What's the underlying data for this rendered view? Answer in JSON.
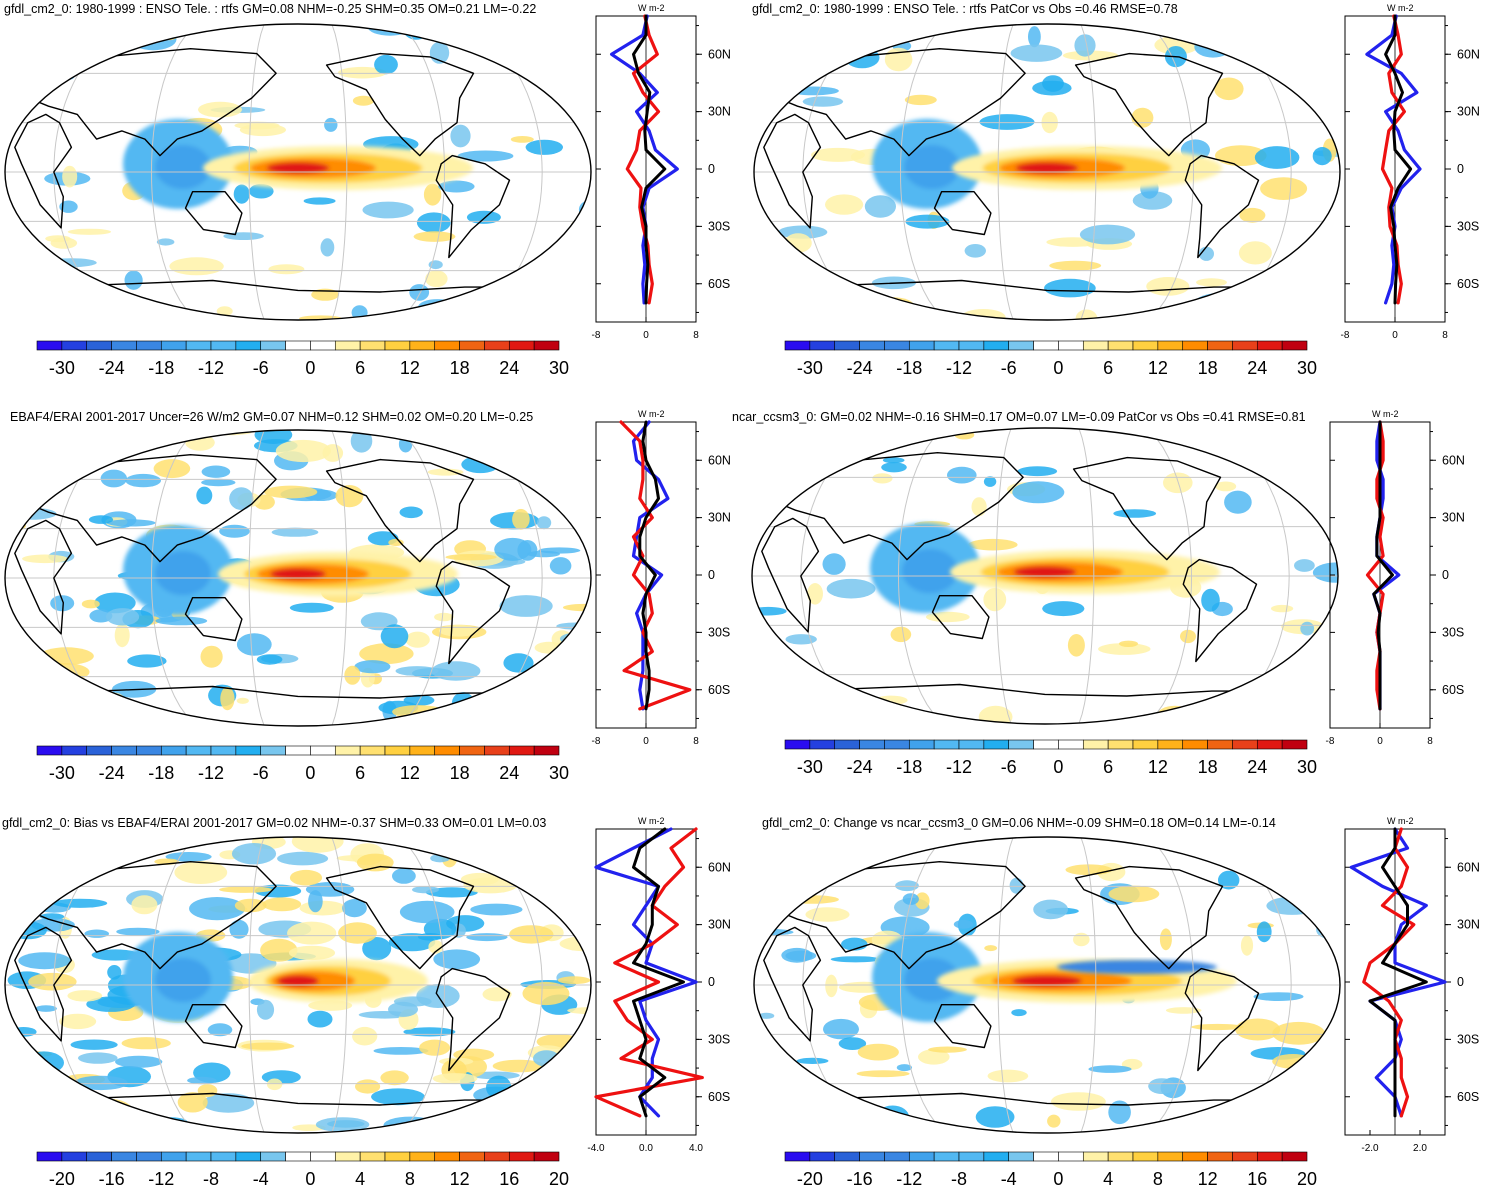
{
  "colors": {
    "cold": "#2222ee",
    "warm": "#ee1111",
    "black": "#000000",
    "ramp_blue": [
      "#2a0cf0",
      "#2440e0",
      "#2a62d8",
      "#3a86e2",
      "#40a2ec",
      "#52b8f2",
      "#22aef0",
      "#78c6ee"
    ],
    "ramp_red": [
      "#fff2a8",
      "#ffe070",
      "#ffd040",
      "#ffb21a",
      "#ff8c00",
      "#f06412",
      "#e8401a",
      "#e01812",
      "#c00010"
    ]
  },
  "panels": [
    {
      "id": "p1",
      "title": "gfdl_cm2_0: 1980-1999 : ENSO Tele. : rtfs GM=0.08 NHM=-0.25 SHM=0.35 OM=0.21 LM=-0.22",
      "colorbar_labels": [
        "-30",
        "-24",
        "-18",
        "-12",
        "-6",
        "0",
        "6",
        "12",
        "18",
        "24",
        "30"
      ],
      "profile_unit": "W m-2",
      "profile_xticks": [
        "-8",
        "0",
        "8"
      ],
      "lat_ticks": [
        "60N",
        "30N",
        "0",
        "30S",
        "60S"
      ],
      "map": {
        "band": 0.9,
        "features": [
          "warm-equatorial-pacific",
          "cool-maritime"
        ],
        "noise": 0.2
      },
      "chart_data": {
        "type": "line",
        "xlabel": "W m-2",
        "xlim": [
          -8,
          8
        ],
        "lat": [
          80,
          70,
          60,
          50,
          40,
          30,
          20,
          10,
          0,
          -10,
          -20,
          -30,
          -40,
          -50,
          -60,
          -70
        ],
        "series": [
          {
            "name": "blue",
            "values": [
              0.2,
              -0.5,
              -5.5,
              -1.0,
              1.8,
              -1.5,
              0.5,
              1.5,
              5.0,
              0.5,
              -0.5,
              0.0,
              -0.5,
              -0.2,
              -0.5,
              -0.3
            ]
          },
          {
            "name": "red",
            "values": [
              -0.2,
              0.5,
              1.8,
              -2.0,
              -0.5,
              2.0,
              -1.0,
              -1.5,
              -3.0,
              -0.8,
              -1.0,
              -0.5,
              0.3,
              0.5,
              1.0,
              0.5
            ]
          },
          {
            "name": "black",
            "values": [
              0.0,
              0.0,
              -2.0,
              -1.2,
              0.6,
              0.2,
              -0.2,
              0.0,
              3.0,
              0.0,
              -0.7,
              0.0,
              0.0,
              0.3,
              0.1,
              0.0
            ]
          }
        ]
      }
    },
    {
      "id": "p2",
      "title": "gfdl_cm2_0: 1980-1999 : ENSO Tele. : rtfs PatCor vs Obs =0.46 RMSE=0.78",
      "colorbar_labels": [
        "-30",
        "-24",
        "-18",
        "-12",
        "-6",
        "0",
        "6",
        "12",
        "18",
        "24",
        "30"
      ],
      "profile_unit": "W m-2",
      "profile_xticks": [
        "-8",
        "0",
        "8"
      ],
      "lat_ticks": [
        "60N",
        "30N",
        "0",
        "30S",
        "60S"
      ],
      "map": {
        "band": 0.9,
        "features": [
          "warm-equatorial-pacific",
          "cool-maritime"
        ],
        "noise": 0.2
      },
      "chart_data": {
        "type": "line",
        "xlabel": "W m-2",
        "xlim": [
          -8,
          8
        ],
        "lat": [
          80,
          70,
          60,
          50,
          40,
          30,
          20,
          10,
          0,
          -10,
          -20,
          -30,
          -40,
          -50,
          -60,
          -70
        ],
        "series": [
          {
            "name": "blue",
            "values": [
              0.2,
              -0.5,
              -4.5,
              1.0,
              3.5,
              -1.5,
              0.5,
              1.5,
              4.0,
              1.0,
              -0.5,
              0.0,
              -0.5,
              -0.2,
              -0.5,
              -1.5
            ]
          },
          {
            "name": "red",
            "values": [
              -0.2,
              0.5,
              1.0,
              -1.0,
              -0.5,
              1.5,
              -1.0,
              -1.5,
              -2.0,
              -0.5,
              -1.0,
              -0.8,
              0.3,
              0.5,
              1.0,
              0.5
            ]
          },
          {
            "name": "black",
            "values": [
              0.0,
              0.0,
              -1.5,
              0.0,
              1.2,
              0.0,
              -0.2,
              0.0,
              2.5,
              0.5,
              -0.7,
              -0.2,
              0.0,
              0.3,
              0.1,
              0.0
            ]
          }
        ]
      }
    },
    {
      "id": "p3",
      "title": "EBAF4/ERAI 2001-2017 Uncer=26 W/m2 GM=0.07 NHM=0.12 SHM=0.02 OM=0.20 LM=-0.25",
      "colorbar_labels": [
        "-30",
        "-24",
        "-18",
        "-12",
        "-6",
        "0",
        "6",
        "12",
        "18",
        "24",
        "30"
      ],
      "profile_unit": "W m-2",
      "profile_xticks": [
        "-8",
        "0",
        "8"
      ],
      "lat_ticks": [
        "60N",
        "30N",
        "0",
        "30S",
        "60S"
      ],
      "map": {
        "band": 0.8,
        "features": [
          "warm-equatorial-pacific",
          "cool-maritime"
        ],
        "noise": 0.8
      },
      "chart_data": {
        "type": "line",
        "xlabel": "W m-2",
        "xlim": [
          -8,
          8
        ],
        "lat": [
          80,
          70,
          60,
          50,
          40,
          30,
          20,
          10,
          0,
          -10,
          -20,
          -30,
          -40,
          -50,
          -60,
          -70
        ],
        "series": [
          {
            "name": "blue",
            "values": [
              0.5,
              -2.0,
              -1.5,
              2.0,
              3.5,
              -1.0,
              -1.5,
              -2.0,
              2.5,
              0.0,
              -1.5,
              -0.5,
              -0.5,
              -0.5,
              -1.0,
              -0.5
            ]
          },
          {
            "name": "red",
            "values": [
              -4.0,
              -1.0,
              -0.5,
              -0.5,
              -1.0,
              1.0,
              -2.0,
              -0.5,
              -2.0,
              0.5,
              1.0,
              -0.5,
              1.0,
              -3.5,
              7.0,
              -1.0
            ]
          },
          {
            "name": "black",
            "values": [
              0.0,
              -0.5,
              0.0,
              1.5,
              2.0,
              0.0,
              -1.0,
              -1.0,
              1.5,
              0.0,
              -0.5,
              0.0,
              0.0,
              0.5,
              0.5,
              0.0
            ]
          }
        ]
      }
    },
    {
      "id": "p4",
      "title": "ncar_ccsm3_0: GM=0.02 NHM=-0.16 SHM=0.17 OM=0.07 LM=-0.09 PatCor vs Obs =0.41 RMSE=0.81",
      "colorbar_labels": [
        "-30",
        "-24",
        "-18",
        "-12",
        "-6",
        "0",
        "6",
        "12",
        "18",
        "24",
        "30"
      ],
      "profile_unit": "W m-2",
      "profile_xticks": [
        "-8",
        "0",
        "8"
      ],
      "lat_ticks": [
        "60N",
        "30N",
        "0",
        "30S",
        "60S"
      ],
      "map": {
        "band": 0.9,
        "features": [
          "warm-equatorial-pacific",
          "cool-maritime"
        ],
        "noise": 0.1
      },
      "chart_data": {
        "type": "line",
        "xlabel": "W m-2",
        "xlim": [
          -8,
          8
        ],
        "lat": [
          80,
          70,
          60,
          50,
          40,
          30,
          20,
          10,
          0,
          -10,
          -20,
          -30,
          -40,
          -50,
          -60,
          -70
        ],
        "series": [
          {
            "name": "blue",
            "values": [
              0.0,
              -0.5,
              -0.5,
              0.5,
              0.5,
              0.0,
              -0.5,
              -0.5,
              3.0,
              -1.0,
              0.0,
              -0.5,
              0.0,
              0.0,
              0.0,
              0.0
            ]
          },
          {
            "name": "red",
            "values": [
              0.0,
              0.5,
              0.5,
              -0.5,
              -0.5,
              0.5,
              0.0,
              0.5,
              -2.0,
              0.5,
              0.0,
              -0.5,
              0.0,
              -0.5,
              -0.5,
              0.0
            ]
          },
          {
            "name": "black",
            "values": [
              0.0,
              0.0,
              0.0,
              0.0,
              0.0,
              0.0,
              -0.5,
              -0.5,
              2.0,
              -1.0,
              0.0,
              -0.3,
              0.0,
              0.0,
              0.0,
              0.0
            ]
          }
        ]
      }
    },
    {
      "id": "p5",
      "title": "gfdl_cm2_0: Bias vs EBAF4/ERAI 2001-2017 GM=0.02 NHM=-0.37 SHM=0.33 OM=0.01 LM=0.03",
      "colorbar_labels": [
        "-20",
        "-16",
        "-12",
        "-8",
        "-4",
        "0",
        "4",
        "8",
        "12",
        "16",
        "20"
      ],
      "profile_unit": "W m-2",
      "profile_xticks": [
        "-4.0",
        "0.0",
        "4.0"
      ],
      "lat_ticks": [
        "60N",
        "30N",
        "0",
        "30S",
        "60S"
      ],
      "map": {
        "band": 0.6,
        "features": [
          "warm-equatorial-pacific",
          "cool-maritime"
        ],
        "noise": 1.0
      },
      "chart_data": {
        "type": "line",
        "xlabel": "W m-2",
        "xlim": [
          -4,
          4
        ],
        "lat": [
          80,
          70,
          60,
          50,
          40,
          30,
          20,
          10,
          0,
          -10,
          -20,
          -30,
          -40,
          -50,
          -60,
          -70
        ],
        "series": [
          {
            "name": "blue",
            "values": [
              2.0,
              -1.0,
              -4.0,
              1.0,
              0.0,
              -1.0,
              0.5,
              0.0,
              4.0,
              -0.5,
              0.0,
              1.0,
              0.5,
              0.5,
              -0.5,
              1.0
            ]
          },
          {
            "name": "red",
            "values": [
              4.0,
              2.0,
              3.0,
              1.5,
              0.5,
              2.5,
              0.5,
              -2.5,
              1.0,
              -2.5,
              -1.5,
              0.5,
              -2.0,
              4.5,
              -4.0,
              -0.5
            ]
          },
          {
            "name": "black",
            "values": [
              1.5,
              -0.5,
              -1.0,
              1.0,
              0.5,
              0.5,
              0.0,
              -1.0,
              3.0,
              -1.0,
              -0.5,
              0.0,
              -0.5,
              1.5,
              -0.5,
              0.0
            ]
          }
        ]
      }
    },
    {
      "id": "p6",
      "title": "gfdl_cm2_0: Change vs ncar_ccsm3_0 GM=0.06 NHM=-0.09 SHM=0.18 OM=0.14 LM=-0.14",
      "colorbar_labels": [
        "-20",
        "-16",
        "-12",
        "-8",
        "-4",
        "0",
        "4",
        "8",
        "12",
        "16",
        "20"
      ],
      "profile_unit": "W m-2",
      "profile_xticks": [
        "-2.0",
        "2.0"
      ],
      "lat_ticks": [
        "60N",
        "30N",
        "0",
        "30S",
        "60S"
      ],
      "map": {
        "band": 1.0,
        "features": [
          "warm-equatorial-pacific",
          "cool-maritime",
          "cool-east-pacific"
        ],
        "noise": 0.3
      },
      "chart_data": {
        "type": "line",
        "xlabel": "W m-2",
        "xlim": [
          -4,
          4
        ],
        "lat": [
          80,
          70,
          60,
          50,
          40,
          30,
          20,
          10,
          0,
          -10,
          -20,
          -30,
          -40,
          -50,
          -60,
          -70
        ],
        "series": [
          {
            "name": "blue",
            "values": [
              0.0,
              1.0,
              -3.5,
              -1.0,
              2.5,
              0.5,
              0.0,
              0.0,
              4.0,
              -2.0,
              0.0,
              0.5,
              0.0,
              -1.5,
              0.0,
              0.5
            ]
          },
          {
            "name": "red",
            "values": [
              0.5,
              0.0,
              1.0,
              0.5,
              -1.0,
              1.5,
              0.0,
              -2.0,
              -2.5,
              -0.5,
              0.5,
              0.0,
              0.5,
              0.5,
              1.0,
              0.5
            ]
          },
          {
            "name": "black",
            "values": [
              0.0,
              0.0,
              -1.0,
              0.0,
              1.0,
              1.0,
              0.0,
              -1.0,
              2.5,
              -2.0,
              0.0,
              0.0,
              0.0,
              0.0,
              0.0,
              0.0
            ]
          }
        ]
      }
    }
  ]
}
